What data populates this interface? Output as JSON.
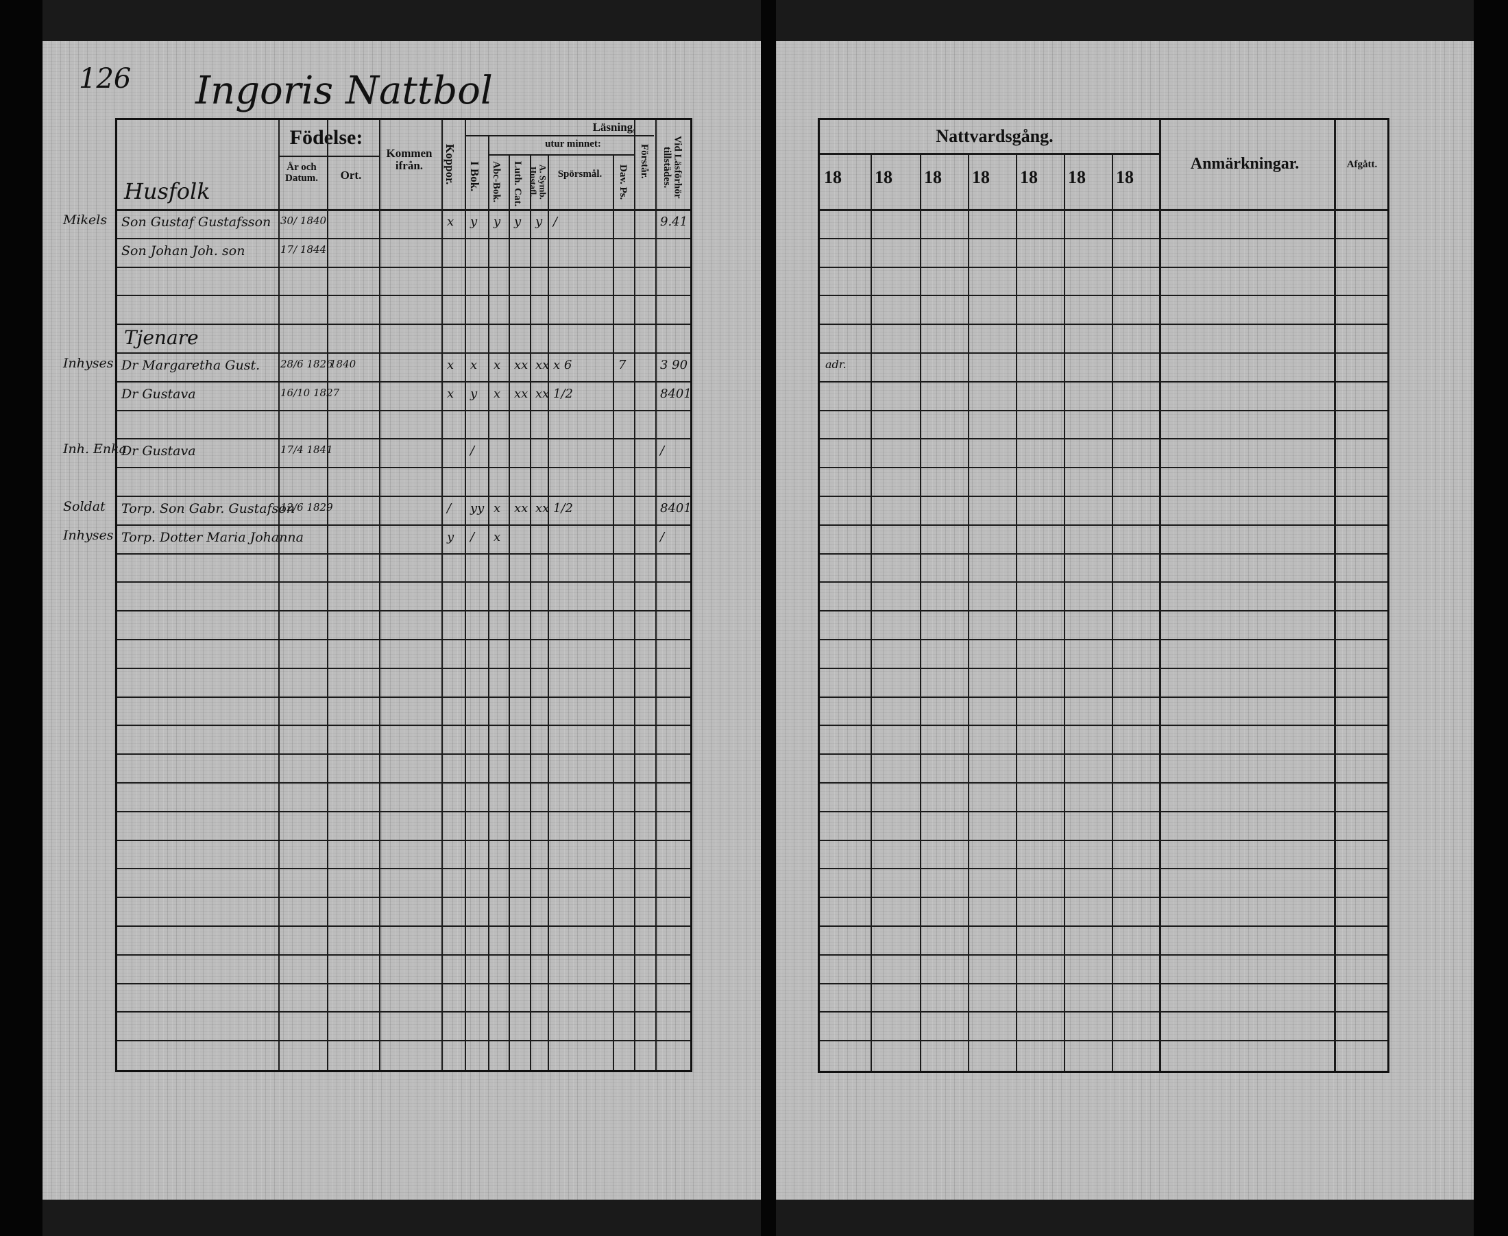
{
  "page_number": "126",
  "page_title": "Ingoris Nattbol",
  "left_table": {
    "section_husfolk": "Husfolk",
    "section_tjenare": "Tjenare",
    "headers": {
      "fodelse": "Födelse:",
      "ar_och_datum": "År och Datum.",
      "ort": "Ort.",
      "kommen_fran": "Kommen ifrån.",
      "koppor": "Koppor.",
      "lasning": "Läsning,",
      "utur_minnet": "utur minnet:",
      "i_bok": "I Bok.",
      "abc_bok": "Abc-Bok.",
      "luth_cat": "Luth. Cat.",
      "a_symb": "A. Symb. Hustafl.",
      "sporsmal": "Spörsmål.",
      "dav_ps": "Dav. Ps.",
      "forstar": "Förstår.",
      "vid_lasforhor": "Vid Läsförhör tillstädes."
    },
    "entries": [
      {
        "row": 0,
        "margin": "Mikels",
        "name": "Son Gustaf Gustafsson",
        "birth": "30/ 1840",
        "ort": "",
        "marks": [
          "x",
          "y",
          "y",
          "y",
          "y",
          "/",
          "",
          ""
        ],
        "vid": "9.41"
      },
      {
        "row": 1,
        "margin": "",
        "name": "Son Johan Joh. son",
        "birth": "17/ 1844",
        "ort": "",
        "marks": [
          "",
          "",
          "",
          "",
          "",
          "",
          "",
          ""
        ],
        "vid": ""
      },
      {
        "row": 5,
        "margin": "Inhyses",
        "name": "Dr Margaretha Gust.",
        "birth": "28/6 1826",
        "ort": "1840",
        "marks": [
          "x",
          "x",
          "x",
          "xx",
          "xx",
          "x 6",
          "7",
          ""
        ],
        "vid": "3 90"
      },
      {
        "row": 6,
        "margin": "",
        "name": "Dr Gustava",
        "birth": "16/10 1827",
        "ort": "",
        "marks": [
          "x",
          "y",
          "x",
          "xx",
          "xx",
          "1/2",
          "",
          ""
        ],
        "vid": "8401"
      },
      {
        "row": 8,
        "margin": "Inh. Enka",
        "name": "Dr Gustava",
        "birth": "17/4 1841",
        "ort": "",
        "marks": [
          "",
          "/",
          "",
          "",
          "",
          "",
          "",
          ""
        ],
        "vid": "/"
      },
      {
        "row": 10,
        "margin": "Soldat",
        "name": "Torp. Son Gabr. Gustafson",
        "birth": "12/6 1829",
        "ort": "",
        "marks": [
          "/",
          "yy",
          "x",
          "xx",
          "xx",
          "1/2",
          "",
          ""
        ],
        "vid": "8401"
      },
      {
        "row": 11,
        "margin": "Inhyses",
        "name": "Torp. Dotter Maria Johanna",
        "birth": "",
        "ort": "",
        "marks": [
          "y",
          "/",
          "x",
          "",
          "",
          "",
          "",
          ""
        ],
        "vid": "/"
      }
    ]
  },
  "right_table": {
    "nattvardsgang": "Nattvardsgång.",
    "year_prefixes": [
      "18",
      "18",
      "18",
      "18",
      "18",
      "18",
      "18"
    ],
    "anmarkningar": "Anmärkningar.",
    "afgatt": "Afgått.",
    "entries": [
      {
        "row": 5,
        "note": "adr."
      }
    ]
  }
}
